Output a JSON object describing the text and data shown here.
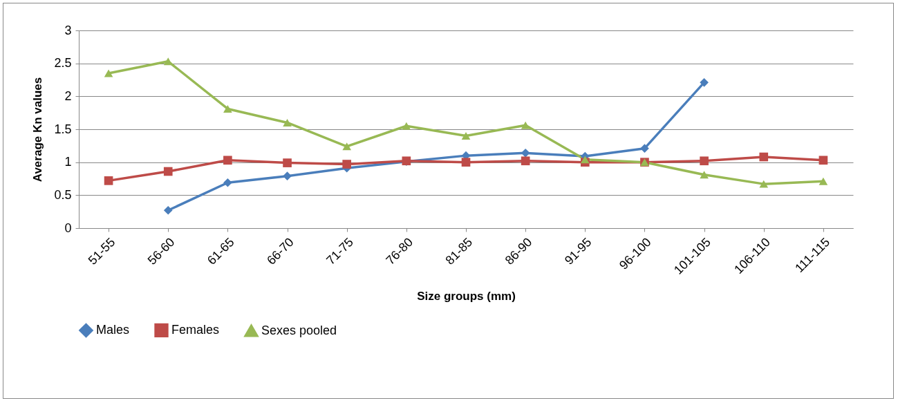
{
  "chart_data": {
    "type": "line",
    "xlabel": "Size groups (mm)",
    "ylabel": "Average Kn values",
    "categories": [
      "51-55",
      "56-60",
      "61-65",
      "66-70",
      "71-75",
      "76-80",
      "81-85",
      "86-90",
      "91-95",
      "96-100",
      "101-105",
      "106-110",
      "111-115"
    ],
    "series": [
      {
        "name": "Males",
        "color": "#4a7ebb",
        "marker": "diamond",
        "values": [
          null,
          0.27,
          0.69,
          0.79,
          0.91,
          1.01,
          1.1,
          1.14,
          1.09,
          1.21,
          2.21,
          null,
          null
        ]
      },
      {
        "name": "Females",
        "color": "#be4b48",
        "marker": "square",
        "values": [
          0.72,
          0.86,
          1.03,
          0.99,
          0.97,
          1.02,
          1.0,
          1.02,
          1.0,
          1.0,
          1.02,
          1.08,
          1.03
        ]
      },
      {
        "name": "Sexes pooled",
        "color": "#98b954",
        "marker": "triangle",
        "values": [
          2.35,
          2.53,
          1.81,
          1.6,
          1.24,
          1.55,
          1.4,
          1.56,
          1.04,
          1.0,
          0.81,
          0.67,
          0.71
        ]
      }
    ],
    "ylim": [
      0,
      3
    ],
    "yticks": [
      0,
      0.5,
      1,
      1.5,
      2,
      2.5,
      3
    ],
    "grid": "y",
    "legend": "bottom",
    "line_style": "solid"
  }
}
